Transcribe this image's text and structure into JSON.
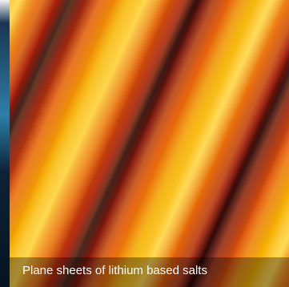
{
  "caption": "Plane sheets of lithium based salts"
}
